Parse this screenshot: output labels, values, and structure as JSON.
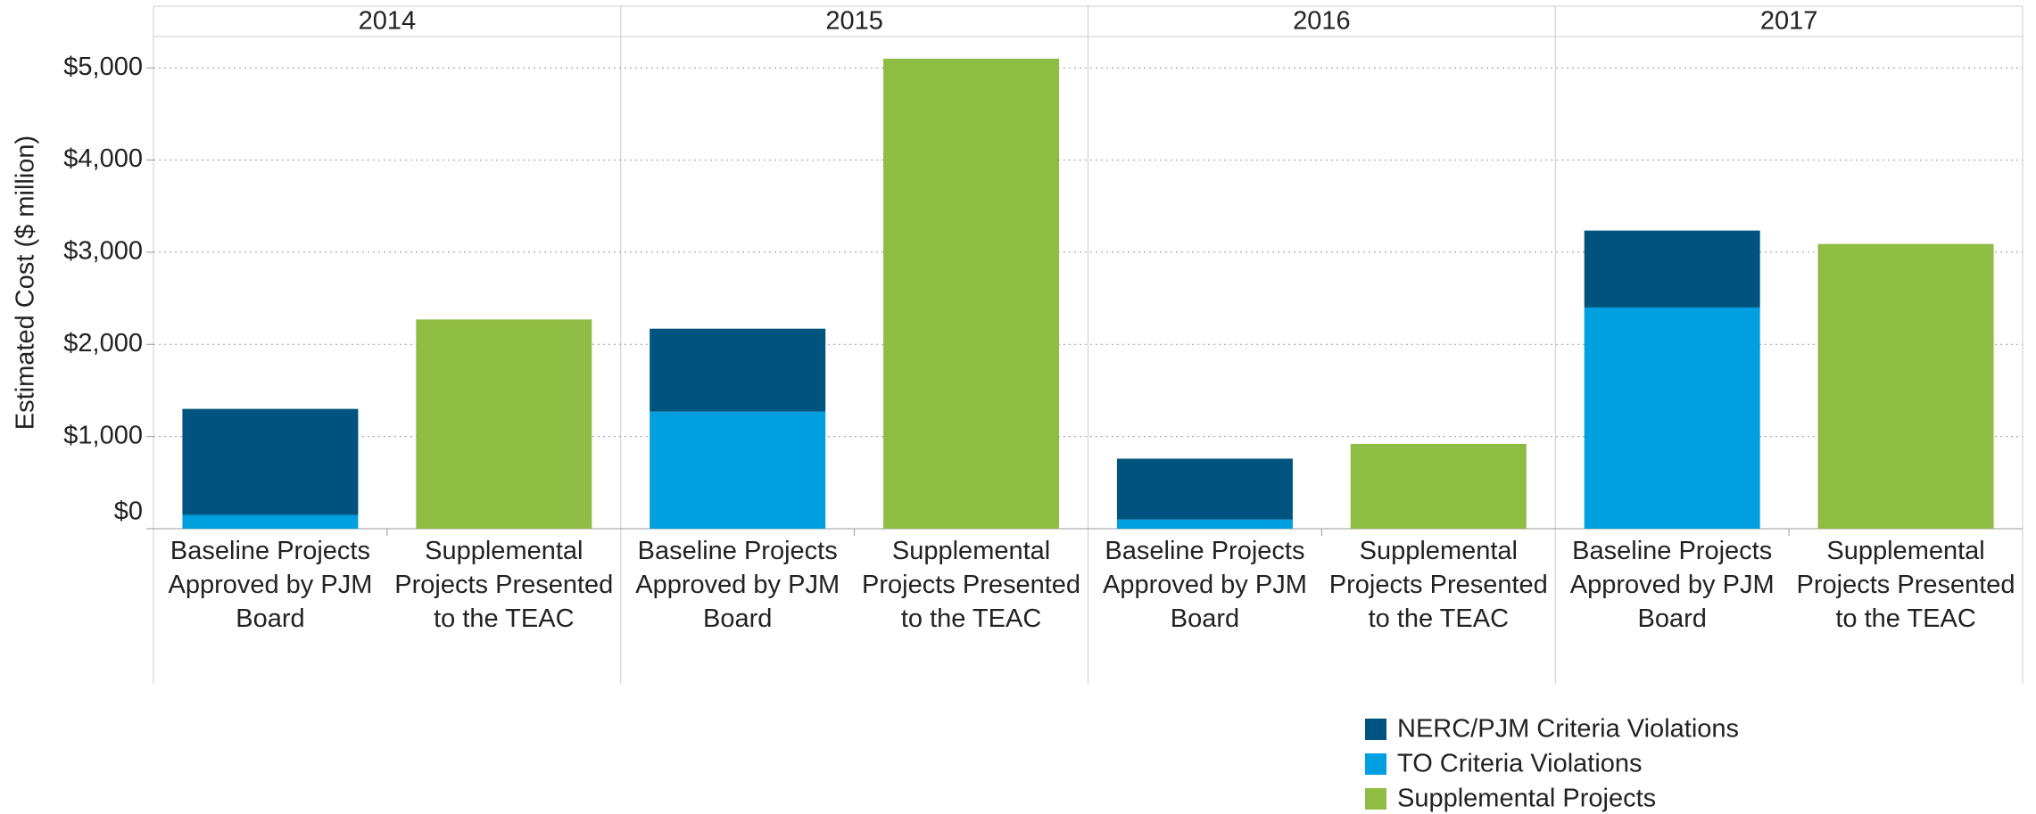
{
  "chart_data": {
    "type": "bar",
    "stacked": true,
    "y_axis_label": "Estimated Cost ($ million)",
    "groups": [
      "2014",
      "2015",
      "2016",
      "2017"
    ],
    "categories": [
      "Baseline Projects Approved by PJM Board",
      "Supplemental Projects Presented to the TEAC",
      "Baseline Projects Approved by PJM Board",
      "Supplemental Projects Presented to the TEAC",
      "Baseline Projects Approved by PJM Board",
      "Supplemental Projects Presented to the TEAC",
      "Baseline Projects Approved by PJM Board",
      "Supplemental Projects Presented to the TEAC"
    ],
    "series": [
      {
        "name": "NERC/PJM Criteria Violations",
        "color": "#00537f",
        "values": [
          1150,
          null,
          900,
          null,
          660,
          null,
          835,
          null
        ]
      },
      {
        "name": "TO Criteria Violations",
        "color": "#00a0e0",
        "values": [
          150,
          null,
          1270,
          null,
          100,
          null,
          2400,
          null
        ]
      },
      {
        "name": "Supplemental Projects",
        "color": "#8fbc43",
        "values": [
          null,
          2270,
          null,
          5100,
          null,
          920,
          null,
          3090
        ]
      }
    ],
    "ylim": [
      0,
      5340
    ],
    "yticks": [
      {
        "value": 0,
        "label": "$0"
      },
      {
        "value": 1000,
        "label": "$1,000"
      },
      {
        "value": 2000,
        "label": "$2,000"
      },
      {
        "value": 3000,
        "label": "$3,000"
      },
      {
        "value": 4000,
        "label": "$4,000"
      },
      {
        "value": 5000,
        "label": "$5,000"
      }
    ],
    "grid": true
  }
}
